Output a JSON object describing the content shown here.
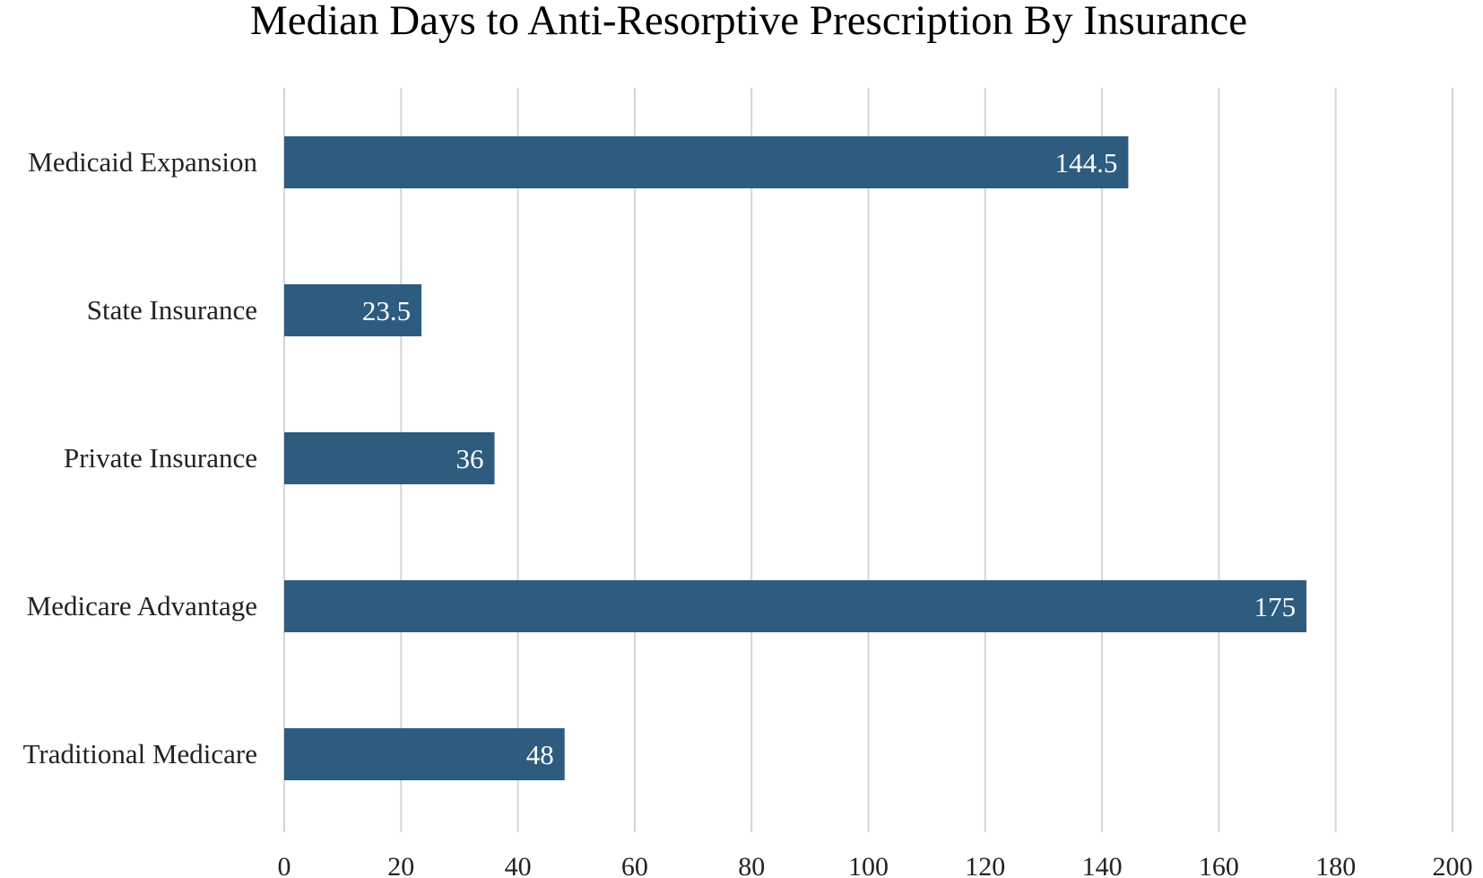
{
  "chart_data": {
    "type": "bar",
    "orientation": "horizontal",
    "title": "Median Days to Anti-Resorptive Prescription By Insurance",
    "categories": [
      "Medicaid Expansion",
      "State Insurance",
      "Private Insurance",
      "Medicare Advantage",
      "Traditional Medicare"
    ],
    "values": [
      144.5,
      23.5,
      36,
      175,
      48
    ],
    "value_labels": [
      "144.5",
      "23.5",
      "36",
      "175",
      "48"
    ],
    "xlim": [
      0,
      200
    ],
    "x_ticks": [
      0,
      20,
      40,
      60,
      80,
      100,
      120,
      140,
      160,
      180,
      200
    ],
    "x_tick_labels": [
      "0",
      "20",
      "40",
      "60",
      "80",
      "100",
      "120",
      "140",
      "160",
      "180",
      "200"
    ],
    "xlabel": "",
    "ylabel": "",
    "grid": "vertical",
    "legend": "none",
    "colors": {
      "bar": "#2d5c7f",
      "grid": "#d4d4d4",
      "text": "#222222",
      "data_label": "#ffffff"
    }
  }
}
